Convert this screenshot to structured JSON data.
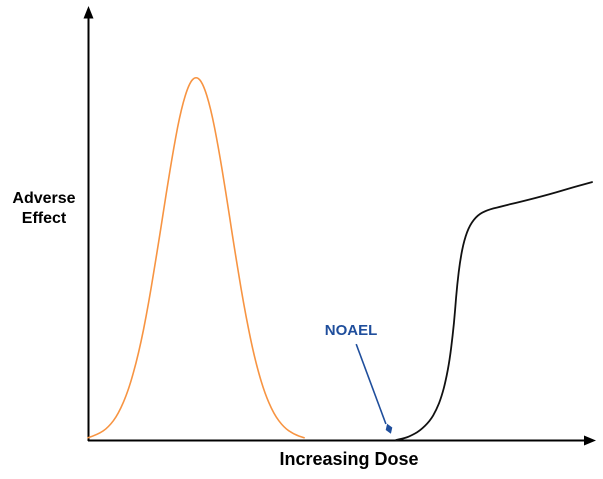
{
  "figure": {
    "description": "Conceptual dose-response diagram with bell-shaped curve and threshold sigmoid curve",
    "background_color": "#FFFFFF",
    "axis_color": "#000000"
  },
  "labels": {
    "y_axis": "Adverse\nEffect",
    "x_axis": "Increasing Dose",
    "annotation": "NOAEL"
  },
  "chart_data": {
    "type": "line",
    "title": "",
    "xlabel": "Increasing Dose",
    "ylabel": "Adverse Effect",
    "grid": false,
    "legend": false,
    "axis_ticks": "none (conceptual axes with arrowheads)",
    "x_range_normalized": [
      0,
      1
    ],
    "y_range_normalized": [
      0,
      1
    ],
    "series": [
      {
        "name": "bell-shaped dose-response curve",
        "color": "#F79442",
        "points": [
          [
            0.0,
            0.005
          ],
          [
            0.02,
            0.013
          ],
          [
            0.04,
            0.029
          ],
          [
            0.06,
            0.06
          ],
          [
            0.08,
            0.114
          ],
          [
            0.1,
            0.198
          ],
          [
            0.12,
            0.315
          ],
          [
            0.14,
            0.458
          ],
          [
            0.155,
            0.572
          ],
          [
            0.17,
            0.679
          ],
          [
            0.185,
            0.768
          ],
          [
            0.2,
            0.825
          ],
          [
            0.214,
            0.843
          ],
          [
            0.228,
            0.825
          ],
          [
            0.243,
            0.768
          ],
          [
            0.258,
            0.679
          ],
          [
            0.273,
            0.572
          ],
          [
            0.288,
            0.458
          ],
          [
            0.308,
            0.315
          ],
          [
            0.328,
            0.198
          ],
          [
            0.348,
            0.114
          ],
          [
            0.368,
            0.06
          ],
          [
            0.388,
            0.029
          ],
          [
            0.408,
            0.013
          ],
          [
            0.428,
            0.005
          ]
        ]
      },
      {
        "name": "threshold sigmoid dose-response curve",
        "color": "#111111",
        "points": [
          [
            0.61,
            0.0
          ],
          [
            0.624,
            0.003
          ],
          [
            0.638,
            0.009
          ],
          [
            0.657,
            0.021
          ],
          [
            0.677,
            0.044
          ],
          [
            0.69,
            0.07
          ],
          [
            0.7,
            0.1
          ],
          [
            0.709,
            0.14
          ],
          [
            0.716,
            0.185
          ],
          [
            0.722,
            0.24
          ],
          [
            0.727,
            0.3
          ],
          [
            0.731,
            0.36
          ],
          [
            0.737,
            0.417
          ],
          [
            0.745,
            0.463
          ],
          [
            0.756,
            0.498
          ],
          [
            0.772,
            0.521
          ],
          [
            0.79,
            0.532
          ],
          [
            0.816,
            0.54
          ],
          [
            0.855,
            0.551
          ],
          [
            0.915,
            0.569
          ],
          [
            0.964,
            0.586
          ],
          [
            0.998,
            0.597
          ]
        ]
      }
    ],
    "annotations": [
      {
        "text": "NOAEL",
        "color": "#1F4E9C",
        "arrow_from": [
          0.531,
          0.222
        ],
        "arrow_to": [
          0.59,
          0.037
        ],
        "marker": "diamond",
        "marker_pos": [
          0.596,
          0.026
        ]
      }
    ]
  }
}
